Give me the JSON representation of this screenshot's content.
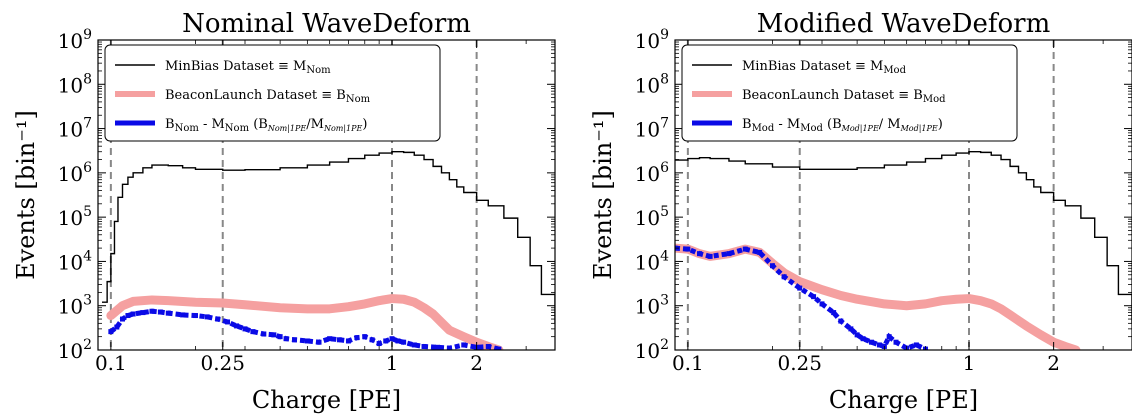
{
  "chart_data": [
    {
      "type": "line",
      "title": "Nominal WaveDeform",
      "xlabel": "Charge [PE]",
      "ylabel": "Events [bin⁻¹]",
      "xscale": "log",
      "yscale": "log",
      "xlim": [
        0.09,
        3.8
      ],
      "ylim": [
        100,
        1000000000
      ],
      "xticks": [
        {
          "value": 0.1,
          "label": "0.1"
        },
        {
          "value": 0.25,
          "label": "0.25"
        },
        {
          "value": 1,
          "label": "1"
        },
        {
          "value": 2,
          "label": "2"
        }
      ],
      "yticks": [
        {
          "value": 100,
          "base": "10",
          "exp": "2"
        },
        {
          "value": 1000,
          "base": "10",
          "exp": "3"
        },
        {
          "value": 10000,
          "base": "10",
          "exp": "4"
        },
        {
          "value": 100000,
          "base": "10",
          "exp": "5"
        },
        {
          "value": 1000000,
          "base": "10",
          "exp": "6"
        },
        {
          "value": 10000000,
          "base": "10",
          "exp": "7"
        },
        {
          "value": 100000000,
          "base": "10",
          "exp": "8"
        },
        {
          "value": 1000000000,
          "base": "10",
          "exp": "9"
        }
      ],
      "vlines": [
        0.1,
        0.25,
        1,
        2
      ],
      "legend_position": "top-left",
      "series": [
        {
          "legend": {
            "main": "MinBias Dataset ≡ M",
            "sub": "Nom",
            "tail": ""
          },
          "color": "#000000",
          "style": "step",
          "x": [
            0.093,
            0.097,
            0.1,
            0.103,
            0.106,
            0.11,
            0.115,
            0.12,
            0.13,
            0.14,
            0.16,
            0.18,
            0.2,
            0.25,
            0.3,
            0.4,
            0.5,
            0.6,
            0.7,
            0.8,
            0.9,
            1.0,
            1.1,
            1.2,
            1.3,
            1.4,
            1.5,
            1.6,
            1.7,
            1.8,
            2.0,
            2.2,
            2.5,
            2.8,
            3.1,
            3.4,
            3.8
          ],
          "y": [
            1200,
            3500,
            15000,
            80000,
            280000,
            550000,
            800000,
            1000000,
            1300000,
            1500000,
            1450000,
            1300000,
            1200000,
            1150000,
            1180000,
            1300000,
            1500000,
            1750000,
            2100000,
            2500000,
            2800000,
            3000000,
            2900000,
            2500000,
            2000000,
            1400000,
            1000000,
            700000,
            480000,
            360000,
            240000,
            180000,
            95000,
            35000,
            8000,
            1800,
            400
          ]
        },
        {
          "legend": {
            "main": "BeaconLaunch Dataset ≡ B",
            "sub": "Nom",
            "tail": ""
          },
          "color": "#f5a0a0",
          "style": "band",
          "x": [
            0.1,
            0.11,
            0.12,
            0.14,
            0.16,
            0.2,
            0.25,
            0.3,
            0.4,
            0.5,
            0.6,
            0.7,
            0.8,
            0.9,
            1.0,
            1.1,
            1.2,
            1.3,
            1.4,
            1.5,
            1.6,
            1.8,
            2.0,
            2.2,
            2.4
          ],
          "y": [
            600,
            1000,
            1250,
            1350,
            1300,
            1200,
            1150,
            1050,
            900,
            850,
            850,
            950,
            1100,
            1300,
            1450,
            1400,
            1200,
            900,
            650,
            420,
            280,
            200,
            150,
            120,
            100
          ]
        },
        {
          "legend": {
            "main": "B",
            "sub": "Nom",
            "tail": " - M",
            "sub2": "Nom",
            "tail2": " (B",
            "sub3": "Nom|1PE",
            "tail3": "/M",
            "sub4": "Nom|1PE",
            "tail4": ")"
          },
          "color": "#0a0ae6",
          "style": "scatter",
          "x": [
            0.1,
            0.105,
            0.11,
            0.115,
            0.12,
            0.13,
            0.14,
            0.15,
            0.16,
            0.18,
            0.2,
            0.22,
            0.24,
            0.26,
            0.28,
            0.3,
            0.32,
            0.35,
            0.38,
            0.4,
            0.42,
            0.45,
            0.5,
            0.55,
            0.6,
            0.65,
            0.7,
            0.75,
            0.8,
            0.85,
            0.9,
            0.95,
            1.0,
            1.05,
            1.1,
            1.2,
            1.3,
            1.45,
            1.6,
            1.8,
            2.0,
            2.2,
            2.4
          ],
          "y": [
            260,
            330,
            500,
            600,
            650,
            700,
            750,
            720,
            680,
            620,
            600,
            560,
            500,
            430,
            350,
            300,
            260,
            230,
            220,
            200,
            180,
            170,
            160,
            150,
            180,
            170,
            160,
            190,
            200,
            170,
            140,
            160,
            180,
            160,
            150,
            130,
            120,
            115,
            110,
            130,
            115,
            120,
            105
          ]
        }
      ]
    },
    {
      "type": "line",
      "title": "Modified WaveDeform",
      "xlabel": "Charge [PE]",
      "ylabel": "Events [bin⁻¹]",
      "xscale": "log",
      "yscale": "log",
      "xlim": [
        0.09,
        3.8
      ],
      "ylim": [
        100,
        1000000000
      ],
      "xticks": [
        {
          "value": 0.1,
          "label": "0.1"
        },
        {
          "value": 0.25,
          "label": "0.25"
        },
        {
          "value": 1,
          "label": "1"
        },
        {
          "value": 2,
          "label": "2"
        }
      ],
      "yticks": [
        {
          "value": 100,
          "base": "10",
          "exp": "2"
        },
        {
          "value": 1000,
          "base": "10",
          "exp": "3"
        },
        {
          "value": 10000,
          "base": "10",
          "exp": "4"
        },
        {
          "value": 100000,
          "base": "10",
          "exp": "5"
        },
        {
          "value": 1000000,
          "base": "10",
          "exp": "6"
        },
        {
          "value": 10000000,
          "base": "10",
          "exp": "7"
        },
        {
          "value": 100000000,
          "base": "10",
          "exp": "8"
        },
        {
          "value": 1000000000,
          "base": "10",
          "exp": "9"
        }
      ],
      "vlines": [
        0.1,
        0.25,
        1,
        2
      ],
      "legend_position": "top-left",
      "series": [
        {
          "legend": {
            "main": "MinBias Dataset ≡ M",
            "sub": "Mod",
            "tail": ""
          },
          "color": "#000000",
          "style": "step",
          "x": [
            0.09,
            0.1,
            0.11,
            0.12,
            0.14,
            0.16,
            0.2,
            0.25,
            0.3,
            0.4,
            0.5,
            0.6,
            0.7,
            0.8,
            0.9,
            1.0,
            1.1,
            1.2,
            1.3,
            1.4,
            1.5,
            1.6,
            1.7,
            1.8,
            2.0,
            2.2,
            2.5,
            2.8,
            3.1,
            3.4,
            3.8
          ],
          "y": [
            1950000,
            2100000,
            2200000,
            2100000,
            1850000,
            1600000,
            1350000,
            1200000,
            1200000,
            1300000,
            1500000,
            1750000,
            2100000,
            2500000,
            2800000,
            3000000,
            2900000,
            2500000,
            2000000,
            1400000,
            1000000,
            700000,
            480000,
            360000,
            240000,
            180000,
            95000,
            35000,
            8000,
            1800,
            400
          ]
        },
        {
          "legend": {
            "main": "BeaconLaunch Dataset ≡ B",
            "sub": "Mod",
            "tail": ""
          },
          "color": "#f5a0a0",
          "style": "band",
          "x": [
            0.09,
            0.1,
            0.11,
            0.12,
            0.14,
            0.16,
            0.18,
            0.2,
            0.22,
            0.25,
            0.3,
            0.35,
            0.4,
            0.5,
            0.6,
            0.7,
            0.8,
            0.9,
            1.0,
            1.1,
            1.2,
            1.3,
            1.4,
            1.6,
            1.8,
            2.0,
            2.2,
            2.4
          ],
          "y": [
            20000,
            19000,
            15000,
            13000,
            15000,
            19000,
            16000,
            9000,
            5500,
            3500,
            2300,
            1700,
            1400,
            1100,
            1000,
            1100,
            1300,
            1400,
            1450,
            1300,
            1100,
            850,
            620,
            350,
            220,
            150,
            120,
            100
          ]
        },
        {
          "legend": {
            "main": "B",
            "sub": "Mod",
            "tail": " - M",
            "sub2": "Mod",
            "tail2": " (B",
            "sub3": "Mod|1PE",
            "tail3": "/ M",
            "sub4": "Mod|1PE",
            "tail4": ")"
          },
          "color": "#0a0ae6",
          "style": "scatter",
          "x": [
            0.09,
            0.1,
            0.11,
            0.12,
            0.14,
            0.16,
            0.18,
            0.2,
            0.22,
            0.25,
            0.28,
            0.3,
            0.33,
            0.35,
            0.38,
            0.4,
            0.42,
            0.45,
            0.48,
            0.5,
            0.52,
            0.55,
            0.6,
            0.65,
            0.7
          ],
          "y": [
            20000,
            19000,
            15000,
            13000,
            15000,
            19000,
            16000,
            8000,
            4500,
            2500,
            1600,
            1100,
            700,
            450,
            300,
            220,
            180,
            150,
            130,
            120,
            200,
            150,
            110,
            130,
            105
          ]
        }
      ]
    }
  ]
}
